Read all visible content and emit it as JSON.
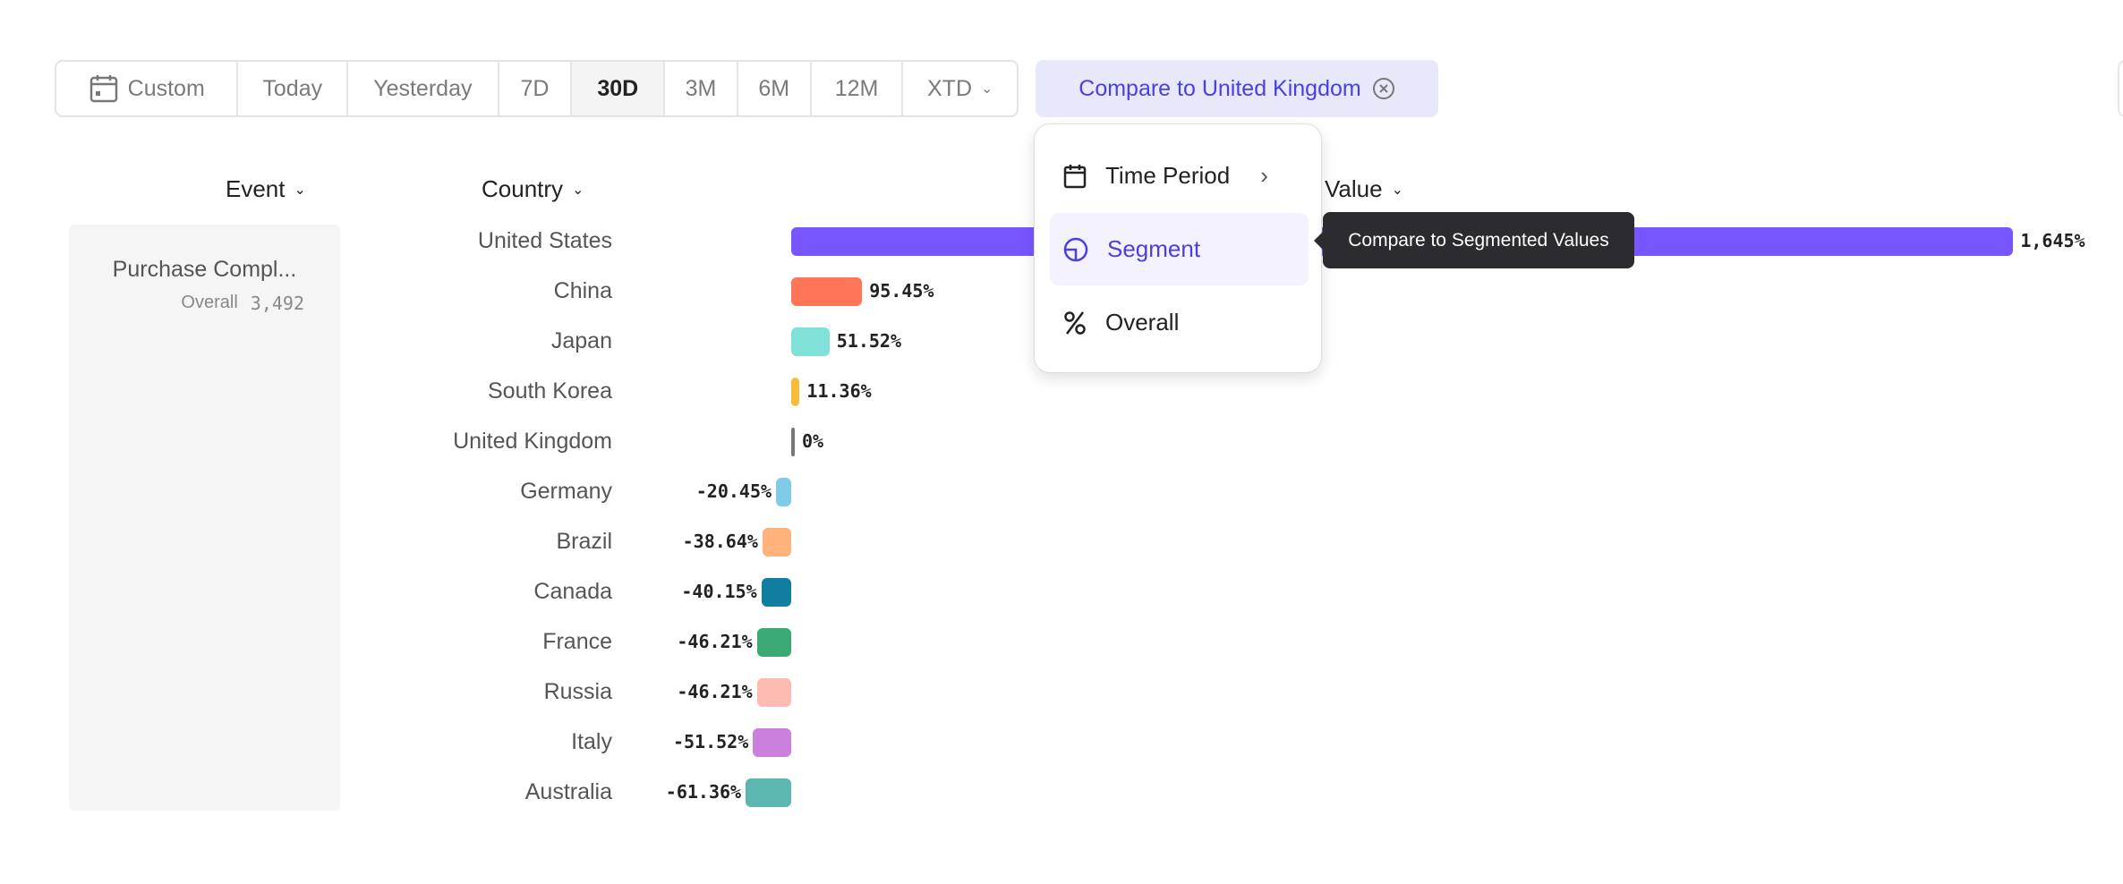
{
  "toolbar": {
    "ranges": [
      "Custom",
      "Today",
      "Yesterday",
      "7D",
      "30D",
      "3M",
      "6M",
      "12M",
      "XTD"
    ],
    "active": "30D"
  },
  "compare_chip": {
    "label": "Compare to United Kingdom"
  },
  "headers": {
    "event": "Event",
    "country": "Country",
    "value": "Value"
  },
  "event_panel": {
    "name": "Purchase Compl...",
    "overall_label": "Overall",
    "overall_value": "3,492"
  },
  "menu": {
    "items": [
      {
        "label": "Time Period",
        "icon": "calendar-icon"
      },
      {
        "label": "Segment",
        "icon": "segment-icon"
      },
      {
        "label": "Overall",
        "icon": "percent-icon"
      }
    ],
    "selected": "Segment"
  },
  "tooltip": {
    "text": "Compare to Segmented Values"
  },
  "colors": {
    "accent": "#4a3fe0",
    "chip_bg": "#e8e8fb"
  },
  "chart_data": {
    "type": "bar",
    "orientation": "horizontal",
    "categories": [
      "United States",
      "China",
      "Japan",
      "South Korea",
      "United Kingdom",
      "Germany",
      "Brazil",
      "Canada",
      "France",
      "Russia",
      "Italy",
      "Australia"
    ],
    "values": [
      1645,
      95.45,
      51.52,
      11.36,
      0,
      -20.45,
      -38.64,
      -40.15,
      -46.21,
      -46.21,
      -51.52,
      -61.36
    ],
    "labels": [
      "1,645%",
      "95.45%",
      "51.52%",
      "11.36%",
      "0%",
      "-20.45%",
      "-38.64%",
      "-40.15%",
      "-46.21%",
      "-46.21%",
      "-51.52%",
      "-61.36%"
    ],
    "colors": [
      "#7856ff",
      "#ff7557",
      "#80e1d9",
      "#f8bc3b",
      "#777777",
      "#80cbe8",
      "#ffb27a",
      "#0f7ea0",
      "#3ba974",
      "#febbb2",
      "#ca80dc",
      "#5bb7af"
    ]
  }
}
